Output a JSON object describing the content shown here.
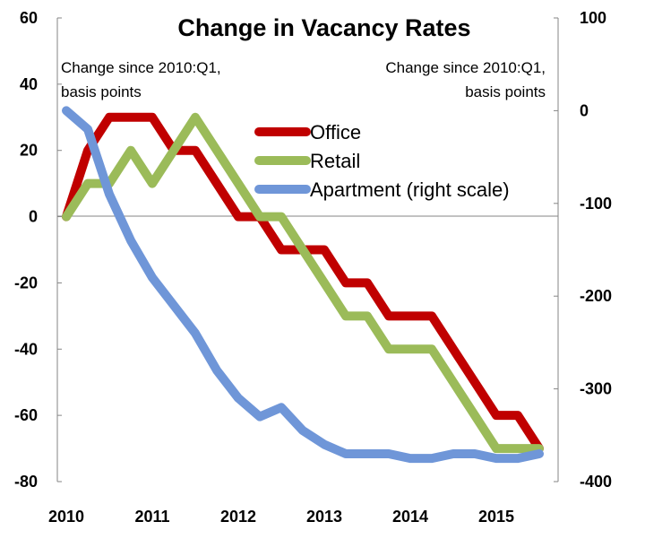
{
  "chart_data": {
    "type": "line",
    "title": "Change in Vacancy Rates",
    "left_axis_note": [
      "Change since 2010:Q1,",
      "basis points"
    ],
    "right_axis_note": [
      "Change since 2010:Q1,",
      "basis points"
    ],
    "x_tick_labels": [
      "2010",
      "2011",
      "2012",
      "2013",
      "2014",
      "2015"
    ],
    "x": [
      "2010:Q1",
      "2010:Q2",
      "2010:Q3",
      "2010:Q4",
      "2011:Q1",
      "2011:Q2",
      "2011:Q3",
      "2011:Q4",
      "2012:Q1",
      "2012:Q2",
      "2012:Q3",
      "2012:Q4",
      "2013:Q1",
      "2013:Q2",
      "2013:Q3",
      "2013:Q4",
      "2014:Q1",
      "2014:Q2",
      "2014:Q3",
      "2014:Q4",
      "2015:Q1",
      "2015:Q2",
      "2015:Q3"
    ],
    "ylim_left": [
      -80,
      60
    ],
    "yticks_left": [
      60,
      40,
      20,
      0,
      -20,
      -40,
      -60,
      -80
    ],
    "ylim_right": [
      -400,
      100
    ],
    "yticks_right": [
      100,
      0,
      -100,
      -200,
      -300,
      -400
    ],
    "grid": false,
    "legend_position": "top-right",
    "series": [
      {
        "name": "Office",
        "axis": "left",
        "color": "#c00000",
        "values": [
          0,
          20,
          30,
          30,
          30,
          20,
          20,
          10,
          0,
          0,
          -10,
          -10,
          -10,
          -20,
          -20,
          -30,
          -30,
          -30,
          -40,
          -50,
          -60,
          -60,
          -70
        ]
      },
      {
        "name": "Retail",
        "axis": "left",
        "color": "#9bbb59",
        "values": [
          0,
          10,
          10,
          20,
          10,
          20,
          30,
          20,
          10,
          0,
          0,
          -10,
          -20,
          -30,
          -30,
          -40,
          -40,
          -40,
          -50,
          -60,
          -70,
          -70,
          -70
        ]
      },
      {
        "name": "Apartment (right scale)",
        "axis": "right",
        "color": "#6f96d8",
        "values": [
          0,
          -20,
          -90,
          -140,
          -180,
          -210,
          -240,
          -280,
          -310,
          -330,
          -320,
          -345,
          -360,
          -370,
          -370,
          -370,
          -375,
          -375,
          -370,
          -370,
          -375,
          -375,
          -370
        ]
      }
    ]
  }
}
